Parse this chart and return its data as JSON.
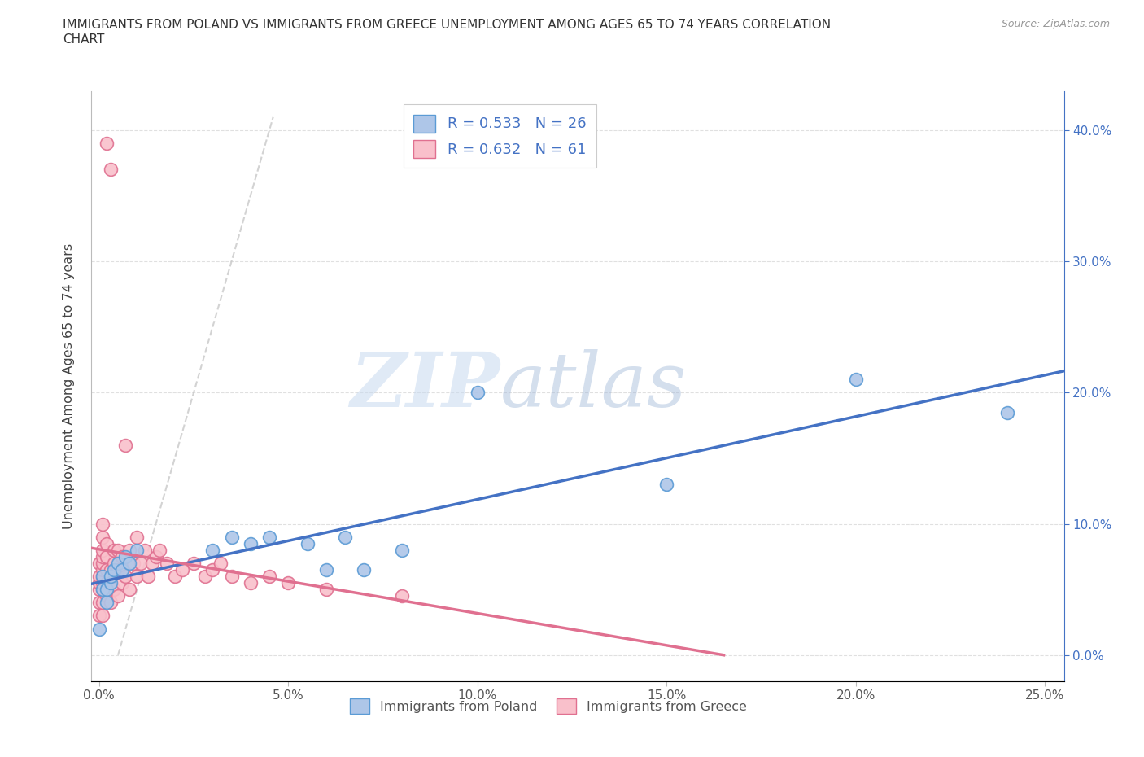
{
  "title": "IMMIGRANTS FROM POLAND VS IMMIGRANTS FROM GREECE UNEMPLOYMENT AMONG AGES 65 TO 74 YEARS CORRELATION\nCHART",
  "source_text": "Source: ZipAtlas.com",
  "ylabel": "Unemployment Among Ages 65 to 74 years",
  "xlim": [
    -0.002,
    0.255
  ],
  "ylim": [
    -0.02,
    0.43
  ],
  "poland_color": "#aec6e8",
  "poland_edge_color": "#5b9bd5",
  "greece_color": "#f9c0cb",
  "greece_edge_color": "#e07090",
  "poland_line_color": "#4472c4",
  "greece_line_color": "#e07090",
  "ref_line_color": "#c8c8c8",
  "R_poland": 0.533,
  "N_poland": 26,
  "R_greece": 0.632,
  "N_greece": 61,
  "legend_poland": "Immigrants from Poland",
  "legend_greece": "Immigrants from Greece",
  "watermark_zip": "ZIP",
  "watermark_atlas": "atlas",
  "background_color": "#ffffff",
  "grid_color": "#e0e0e0",
  "poland_x": [
    0.0,
    0.001,
    0.001,
    0.002,
    0.002,
    0.003,
    0.003,
    0.004,
    0.005,
    0.006,
    0.007,
    0.008,
    0.01,
    0.03,
    0.035,
    0.04,
    0.045,
    0.055,
    0.06,
    0.065,
    0.07,
    0.08,
    0.1,
    0.15,
    0.2,
    0.24
  ],
  "poland_y": [
    0.02,
    0.05,
    0.06,
    0.05,
    0.04,
    0.055,
    0.06,
    0.065,
    0.07,
    0.065,
    0.075,
    0.07,
    0.08,
    0.08,
    0.09,
    0.085,
    0.09,
    0.085,
    0.065,
    0.09,
    0.065,
    0.08,
    0.2,
    0.13,
    0.21,
    0.185
  ],
  "greece_x": [
    0.0,
    0.0,
    0.0,
    0.0,
    0.0,
    0.0,
    0.001,
    0.001,
    0.001,
    0.001,
    0.001,
    0.001,
    0.001,
    0.001,
    0.001,
    0.001,
    0.001,
    0.002,
    0.002,
    0.002,
    0.002,
    0.002,
    0.002,
    0.003,
    0.003,
    0.003,
    0.003,
    0.004,
    0.004,
    0.004,
    0.005,
    0.005,
    0.005,
    0.006,
    0.006,
    0.007,
    0.007,
    0.008,
    0.008,
    0.009,
    0.01,
    0.01,
    0.011,
    0.012,
    0.013,
    0.014,
    0.015,
    0.016,
    0.018,
    0.02,
    0.022,
    0.025,
    0.028,
    0.03,
    0.032,
    0.035,
    0.04,
    0.045,
    0.05,
    0.06,
    0.08
  ],
  "greece_y": [
    0.03,
    0.04,
    0.05,
    0.055,
    0.06,
    0.07,
    0.03,
    0.04,
    0.05,
    0.055,
    0.06,
    0.065,
    0.07,
    0.075,
    0.08,
    0.09,
    0.1,
    0.045,
    0.055,
    0.065,
    0.075,
    0.085,
    0.39,
    0.04,
    0.055,
    0.065,
    0.37,
    0.05,
    0.07,
    0.08,
    0.045,
    0.065,
    0.08,
    0.055,
    0.075,
    0.06,
    0.16,
    0.05,
    0.08,
    0.07,
    0.06,
    0.09,
    0.07,
    0.08,
    0.06,
    0.07,
    0.075,
    0.08,
    0.07,
    0.06,
    0.065,
    0.07,
    0.06,
    0.065,
    0.07,
    0.06,
    0.055,
    0.06,
    0.055,
    0.05,
    0.045
  ]
}
